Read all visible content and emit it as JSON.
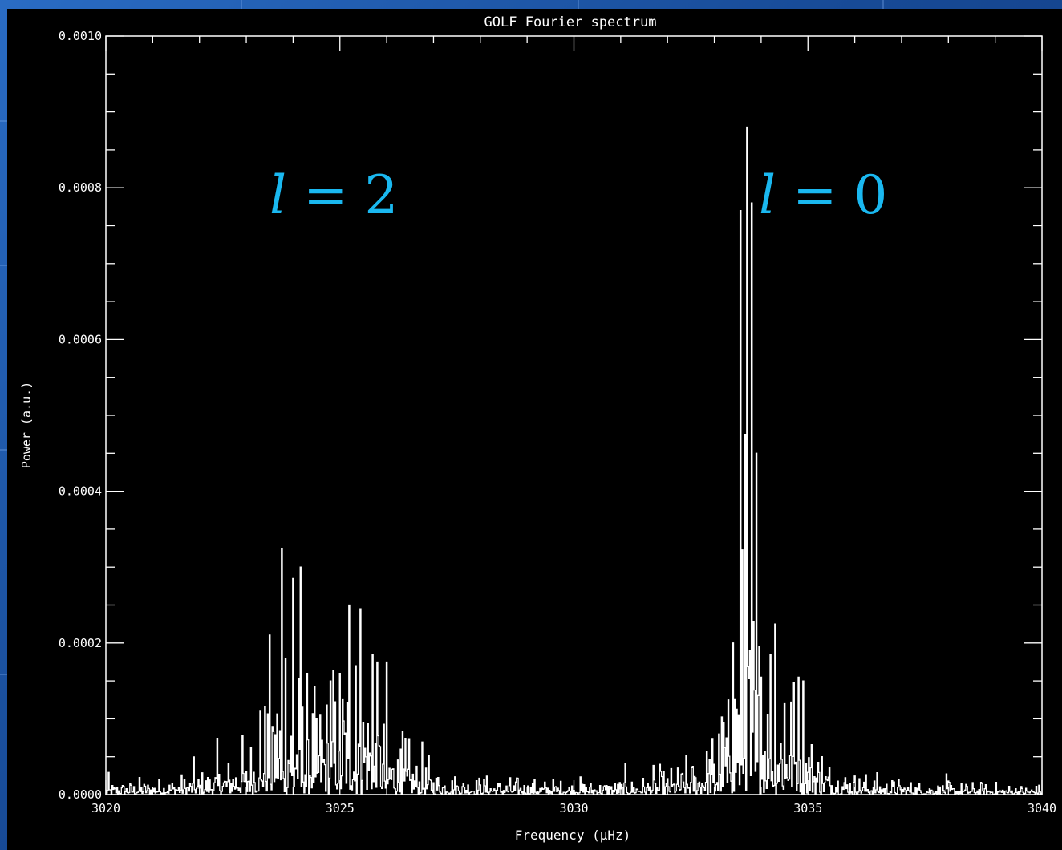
{
  "chart_data": {
    "type": "line",
    "title": "GOLF Fourier spectrum",
    "xlabel": "Frequency (μHz)",
    "ylabel": "Power (a.u.)",
    "xlim": [
      3020,
      3040
    ],
    "ylim": [
      0.0,
      0.001
    ],
    "xticks": [
      3020,
      3025,
      3030,
      3035,
      3040
    ],
    "xtick_labels": [
      "3020",
      "3025",
      "3030",
      "3035",
      "3040"
    ],
    "yticks": [
      0.0,
      0.0002,
      0.0004,
      0.0006,
      0.0008,
      0.001
    ],
    "ytick_labels": [
      "0.0000",
      "0.0002",
      "0.0004",
      "0.0006",
      "0.0008",
      "0.0010"
    ],
    "grid": false,
    "legend": "none",
    "line_color": "#ffffff",
    "background": "#000000",
    "annotations": [
      {
        "ell": "l",
        "rest": " = 2",
        "x": 3024.0,
        "y": 0.00078,
        "color": "#1ab8f0"
      },
      {
        "ell": "l",
        "rest": " = 0",
        "x": 3034.0,
        "y": 0.00078,
        "color": "#1ab8f0"
      }
    ],
    "peaks": [
      {
        "x": 3023.0,
        "y": 3e-05
      },
      {
        "x": 3023.3,
        "y": 0.00011
      },
      {
        "x": 3023.55,
        "y": 9e-05
      },
      {
        "x": 3023.75,
        "y": 0.000325
      },
      {
        "x": 3023.85,
        "y": 0.00018
      },
      {
        "x": 3024.0,
        "y": 0.000285
      },
      {
        "x": 3024.15,
        "y": 0.0003
      },
      {
        "x": 3024.3,
        "y": 0.00016
      },
      {
        "x": 3024.5,
        "y": 0.0001
      },
      {
        "x": 3024.8,
        "y": 0.00015
      },
      {
        "x": 3025.0,
        "y": 0.00016
      },
      {
        "x": 3025.2,
        "y": 0.00025
      },
      {
        "x": 3025.35,
        "y": 0.00017
      },
      {
        "x": 3025.45,
        "y": 0.000245
      },
      {
        "x": 3025.7,
        "y": 0.000185
      },
      {
        "x": 3025.8,
        "y": 0.000175
      },
      {
        "x": 3026.0,
        "y": 0.000175
      },
      {
        "x": 3026.3,
        "y": 6e-05
      },
      {
        "x": 3033.0,
        "y": 4e-05
      },
      {
        "x": 3033.1,
        "y": 8e-05
      },
      {
        "x": 3033.3,
        "y": 0.000125
      },
      {
        "x": 3033.4,
        "y": 0.0002
      },
      {
        "x": 3033.55,
        "y": 0.00077
      },
      {
        "x": 3033.65,
        "y": 0.000475
      },
      {
        "x": 3033.7,
        "y": 0.00088
      },
      {
        "x": 3033.8,
        "y": 0.00078
      },
      {
        "x": 3033.9,
        "y": 0.00045
      },
      {
        "x": 3034.0,
        "y": 0.000155
      },
      {
        "x": 3034.2,
        "y": 0.000185
      },
      {
        "x": 3034.3,
        "y": 0.000225
      },
      {
        "x": 3034.5,
        "y": 0.00012
      },
      {
        "x": 3034.8,
        "y": 0.000155
      },
      {
        "x": 3034.9,
        "y": 0.00015
      },
      {
        "x": 3035.3,
        "y": 5e-05
      }
    ]
  }
}
